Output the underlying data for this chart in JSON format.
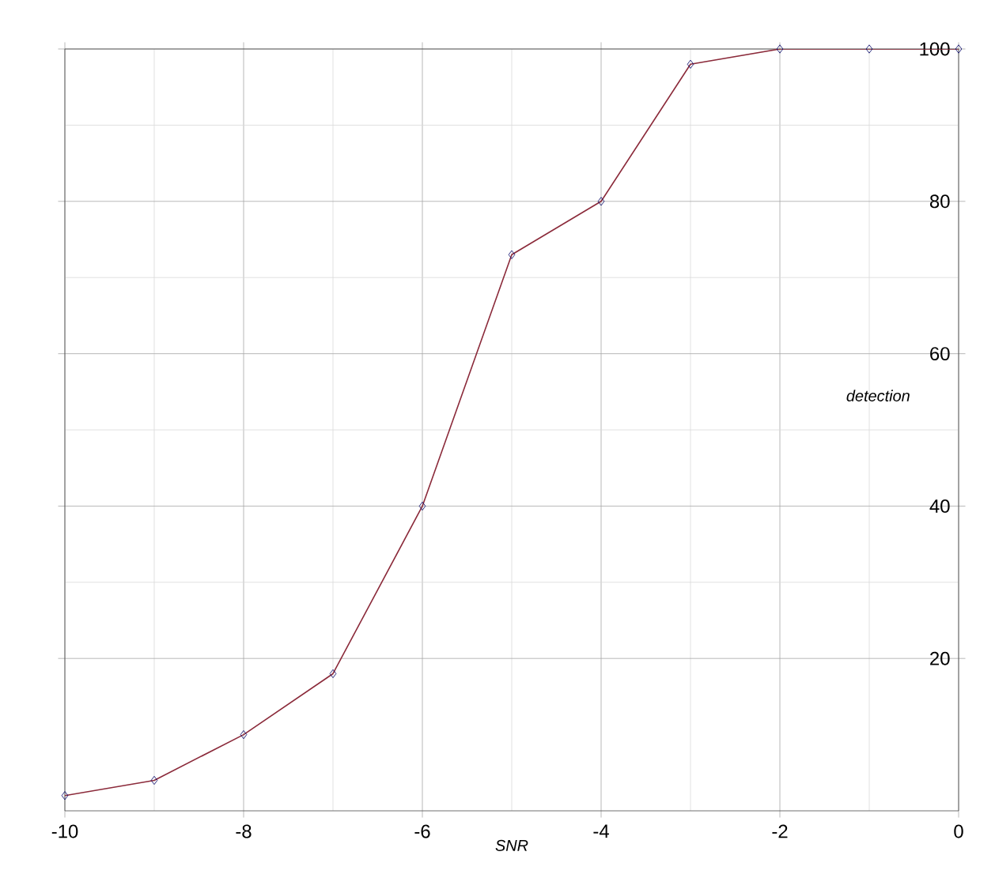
{
  "chart_data": {
    "type": "line",
    "xlabel": "SNR",
    "ylabel": "detection",
    "x": [
      -10,
      -9,
      -8,
      -7,
      -6,
      -5,
      -4,
      -3,
      -2,
      -1,
      0
    ],
    "series": [
      {
        "color": "#8b2a3a",
        "values": [
          2,
          4,
          10,
          18,
          40,
          73,
          80,
          98,
          100,
          100,
          100
        ]
      }
    ],
    "xlim": [
      -10,
      0
    ],
    "ylim": [
      0,
      100
    ],
    "xticks": [
      -10,
      -8,
      -6,
      -4,
      -2,
      0
    ],
    "yticks": [
      20,
      40,
      60,
      80,
      100
    ],
    "grid": true,
    "marker": "diamond",
    "line_style": "solid"
  }
}
